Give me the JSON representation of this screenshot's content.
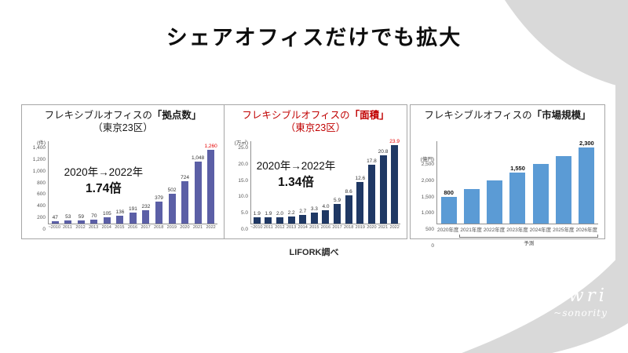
{
  "slide": {
    "title": "シェアオフィスだけでも拡大",
    "source_note": "LIFORK調べ",
    "logo": {
      "primary": "nwri",
      "secondary": "~sonority"
    },
    "decoration_color": "#d9d9d9"
  },
  "chart_data": [
    {
      "type": "bar",
      "title_prefix": "フレキシブルオフィスの",
      "title_emph": "「拠点数」",
      "subtitle": "（東京23区）",
      "title_color": "#1a1a1a",
      "annotation": {
        "line1": "2020年→2022年",
        "line2": "1.74倍"
      },
      "unit": "(件)",
      "ylabel": "件",
      "ymax": 1400,
      "yticks": [
        "1,400",
        "1,200",
        "1,000",
        "800",
        "600",
        "400",
        "200",
        "0"
      ],
      "categories": [
        "~2010",
        "2011",
        "2012",
        "2013",
        "2014",
        "2015",
        "2016",
        "2017",
        "2018",
        "2019",
        "2020",
        "2021",
        "2022"
      ],
      "values": [
        47,
        53,
        59,
        70,
        105,
        136,
        191,
        232,
        379,
        502,
        724,
        1048,
        1260
      ],
      "value_labels": [
        "47",
        "53",
        "59",
        "70",
        "105",
        "136",
        "191",
        "232",
        "379",
        "502",
        "724",
        "1,048",
        "1,260"
      ],
      "bar_color": "#5b5fa6",
      "last_value_color": "#e60000",
      "bracket": null
    },
    {
      "type": "bar",
      "title_prefix": "フレキシブルオフィスの",
      "title_emph": "「面積」",
      "subtitle": "（東京23区）",
      "title_color": "#c00000",
      "annotation": {
        "line1": "2020年→2022年",
        "line2": "1.34倍"
      },
      "unit": "(万㎡)",
      "ylabel": "万㎡",
      "ymax": 25,
      "yticks": [
        "25.0",
        "20.0",
        "15.0",
        "10.0",
        "5.0",
        "0.0"
      ],
      "categories": [
        "~2010",
        "2011",
        "2012",
        "2013",
        "2014",
        "2015",
        "2016",
        "2017",
        "2018",
        "2019",
        "2020",
        "2021",
        "2022"
      ],
      "values": [
        1.9,
        1.9,
        2.0,
        2.2,
        2.7,
        3.3,
        4.0,
        5.9,
        8.6,
        12.6,
        17.8,
        20.8,
        23.9
      ],
      "value_labels": [
        "1.9",
        "1.9",
        "2.0",
        "2.2",
        "2.7",
        "3.3",
        "4.0",
        "5.9",
        "8.6",
        "12.6",
        "17.8",
        "20.8",
        "23.9"
      ],
      "bar_color": "#1f3864",
      "last_value_color": "#e60000",
      "bracket": null
    },
    {
      "type": "bar",
      "title_prefix": "フレキシブルオフィスの",
      "title_emph": "「市場規模」",
      "subtitle": "",
      "title_color": "#1a1a1a",
      "annotation": null,
      "unit": "(億円)",
      "ylabel": "億円",
      "ymax": 2500,
      "yticks": [
        "2,500",
        "2,000",
        "1,500",
        "1,000",
        "500",
        "0"
      ],
      "categories": [
        "2020年度",
        "2021年度",
        "2022年度",
        "2023年度",
        "2024年度",
        "2025年度",
        "2026年度"
      ],
      "values": [
        800,
        1050,
        1300,
        1550,
        1800,
        2050,
        2300
      ],
      "value_labels": [
        "800",
        "",
        "",
        "1,550",
        "",
        "",
        "2,300"
      ],
      "bar_color": "#5b9bd5",
      "last_value_color": null,
      "bracket": {
        "from_index": 1,
        "label": "予測"
      }
    }
  ]
}
